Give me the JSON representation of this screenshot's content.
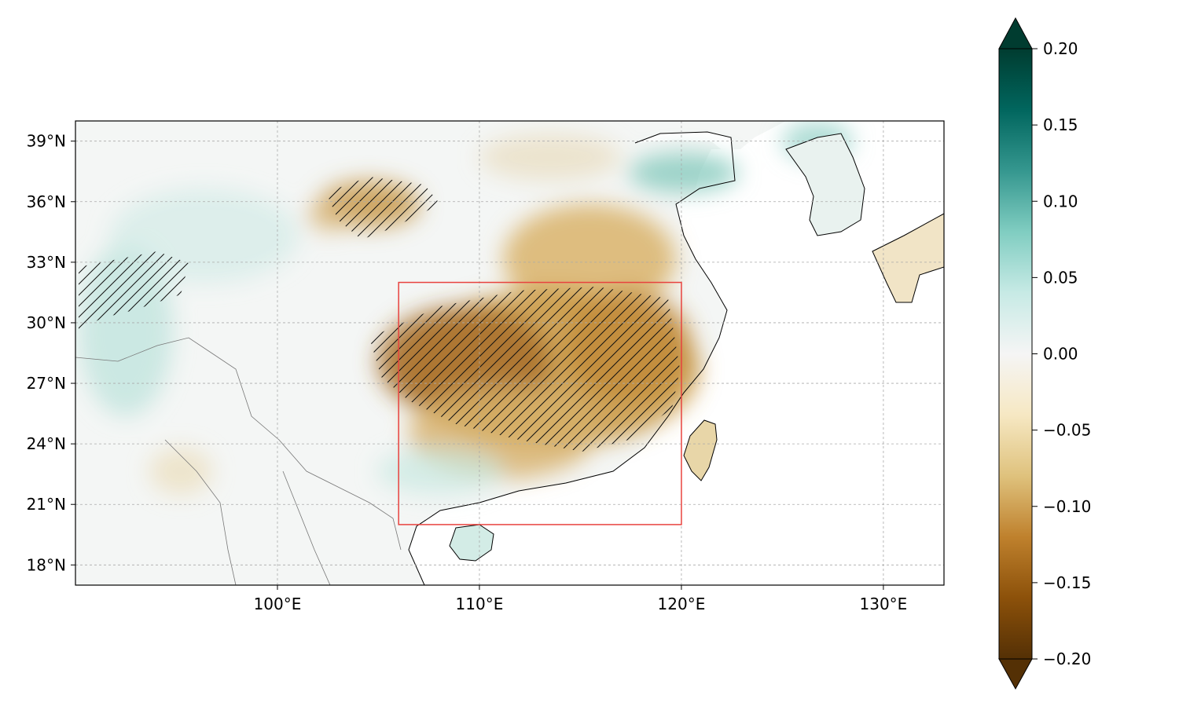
{
  "map": {
    "lon_range": [
      90,
      133
    ],
    "lat_range": [
      17,
      40
    ],
    "lon_ticks": [
      {
        "value": 100,
        "label": "100°E"
      },
      {
        "value": 110,
        "label": "110°E"
      },
      {
        "value": 120,
        "label": "120°E"
      },
      {
        "value": 130,
        "label": "130°E"
      }
    ],
    "lat_ticks": [
      {
        "value": 18,
        "label": "18°N"
      },
      {
        "value": 21,
        "label": "21°N"
      },
      {
        "value": 24,
        "label": "24°N"
      },
      {
        "value": 27,
        "label": "27°N"
      },
      {
        "value": 30,
        "label": "30°N"
      },
      {
        "value": 33,
        "label": "33°N"
      },
      {
        "value": 36,
        "label": "36°N"
      },
      {
        "value": 39,
        "label": "39°N"
      }
    ],
    "gridlines": true,
    "region_box": {
      "lon": [
        106,
        120
      ],
      "lat": [
        20,
        32
      ],
      "color": "#e8423e"
    },
    "colormap": "BrBG",
    "negative_anomaly_region": "central and southeastern China",
    "positive_anomaly_region": "northern China and Korea"
  },
  "colorbar": {
    "range": [
      -0.2,
      0.2
    ],
    "extend": "both",
    "ticks": [
      {
        "value": 0.2,
        "label": "0.20"
      },
      {
        "value": 0.15,
        "label": "0.15"
      },
      {
        "value": 0.1,
        "label": "0.10"
      },
      {
        "value": 0.05,
        "label": "0.05"
      },
      {
        "value": 0.0,
        "label": "0.00"
      },
      {
        "value": -0.05,
        "label": "−0.05"
      },
      {
        "value": -0.1,
        "label": "−0.10"
      },
      {
        "value": -0.15,
        "label": "−0.15"
      },
      {
        "value": -0.2,
        "label": "−0.20"
      }
    ],
    "colors": [
      "#543005",
      "#8c510a",
      "#bf812d",
      "#dfc27d",
      "#f6e8c3",
      "#f5f5f5",
      "#c7eae5",
      "#80cdc1",
      "#35978f",
      "#01665e",
      "#003c30"
    ]
  }
}
